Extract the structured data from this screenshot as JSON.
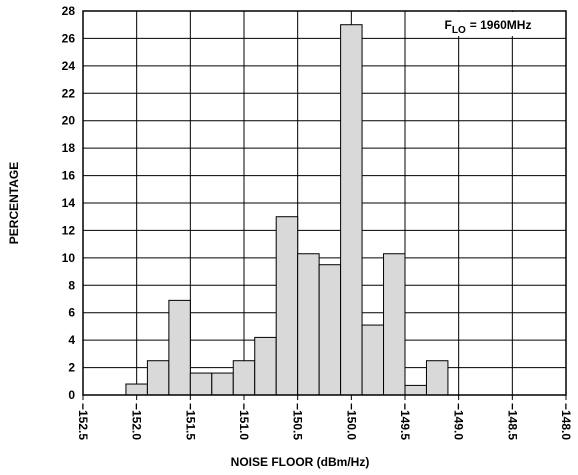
{
  "chart_data": {
    "type": "histogram",
    "xlabel": "NOISE FLOOR (dBm/Hz)",
    "ylabel": "PERCENTAGE",
    "annotation": {
      "symbol": "F",
      "subscript": "LO",
      "text": "= 1960MHz"
    },
    "bins": [
      -152.1,
      -151.9,
      -151.7,
      -151.5,
      -151.3,
      -151.1,
      -150.9,
      -150.7,
      -150.5,
      -150.3,
      -150.1,
      -149.9,
      -149.7,
      -149.5,
      -149.3,
      -149.1
    ],
    "values": [
      0.8,
      2.5,
      6.9,
      1.6,
      1.6,
      2.5,
      4.2,
      13,
      10.3,
      9.5,
      27,
      5.1,
      10.3,
      0.7,
      2.5
    ],
    "color": "#d9d9d9",
    "xlim": [
      -152.5,
      -148.0
    ],
    "ylim": [
      0,
      28
    ],
    "xticks": [
      {
        "value": -152.5,
        "label": "−152.5"
      },
      {
        "value": -152.0,
        "label": "−152.0"
      },
      {
        "value": -151.5,
        "label": "−151.5"
      },
      {
        "value": -151.0,
        "label": "−151.0"
      },
      {
        "value": -150.5,
        "label": "−150.5"
      },
      {
        "value": -150.0,
        "label": "−150.0"
      },
      {
        "value": -149.5,
        "label": "−149.5"
      },
      {
        "value": -149.0,
        "label": "−149.0"
      },
      {
        "value": -148.5,
        "label": "−148.5"
      },
      {
        "value": -148.0,
        "label": "−148.0"
      }
    ],
    "yticks": [
      0,
      2,
      4,
      6,
      8,
      10,
      12,
      14,
      16,
      18,
      20,
      22,
      24,
      26,
      28
    ],
    "grid": true
  }
}
